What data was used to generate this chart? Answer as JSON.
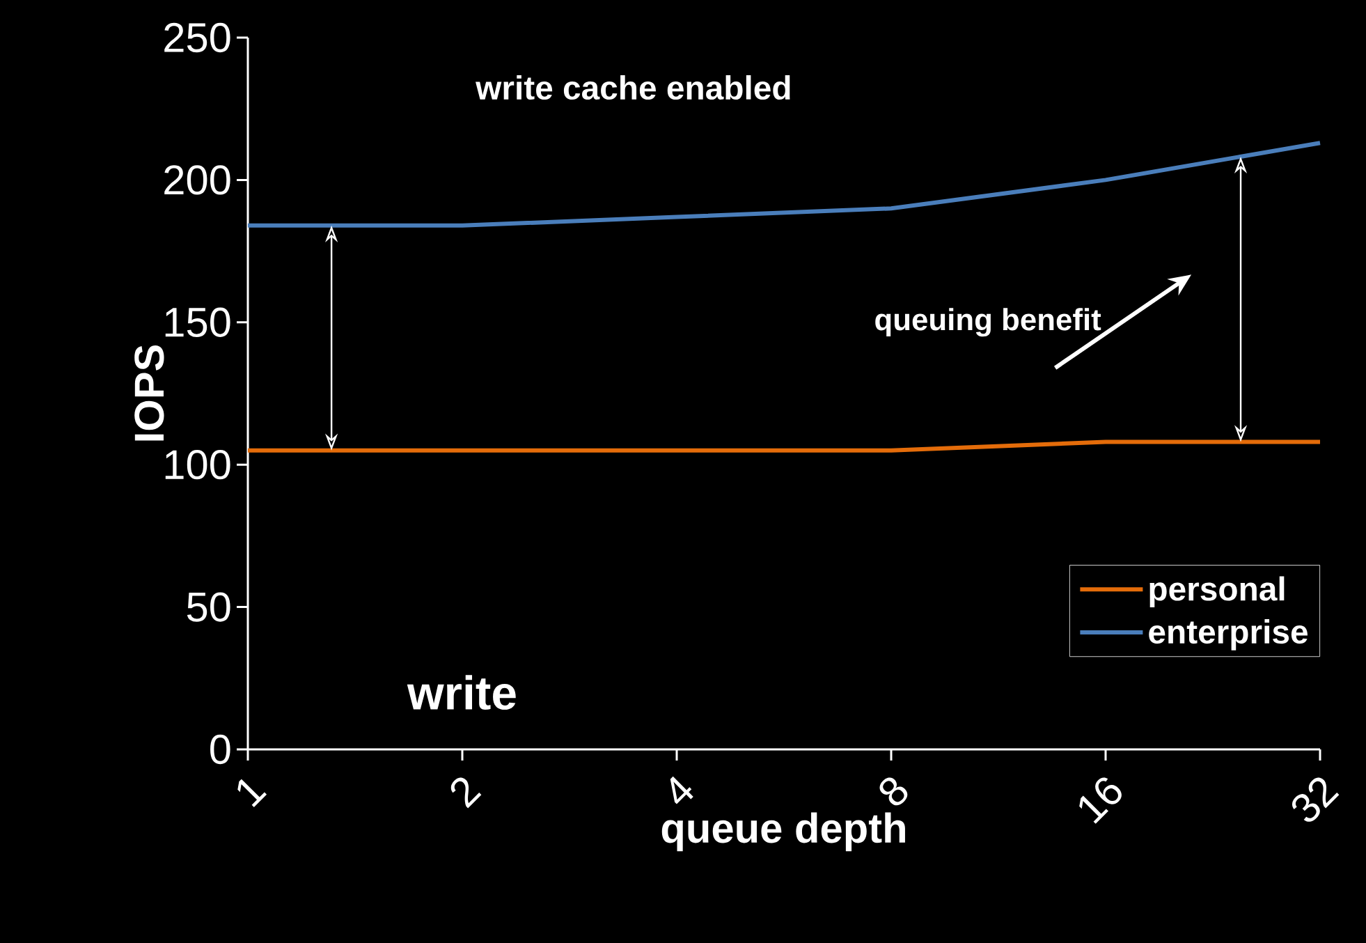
{
  "chart_data": {
    "type": "line",
    "xlabel": "queue depth",
    "ylabel": "IOPS",
    "categories": [
      "1",
      "2",
      "4",
      "8",
      "16",
      "32"
    ],
    "series": [
      {
        "name": "personal",
        "color": "#e46c0a",
        "values": [
          105,
          105,
          105,
          105,
          108,
          108
        ]
      },
      {
        "name": "enterprise",
        "color": "#4a7ebb",
        "values": [
          184,
          184,
          187,
          190,
          200,
          213
        ]
      }
    ],
    "ylim": [
      0,
      250
    ],
    "yticks": [
      0,
      50,
      100,
      150,
      200,
      250
    ],
    "legend": "bottom right",
    "annotations": [
      "write cache enabled",
      "queuing benefit",
      "write"
    ]
  }
}
